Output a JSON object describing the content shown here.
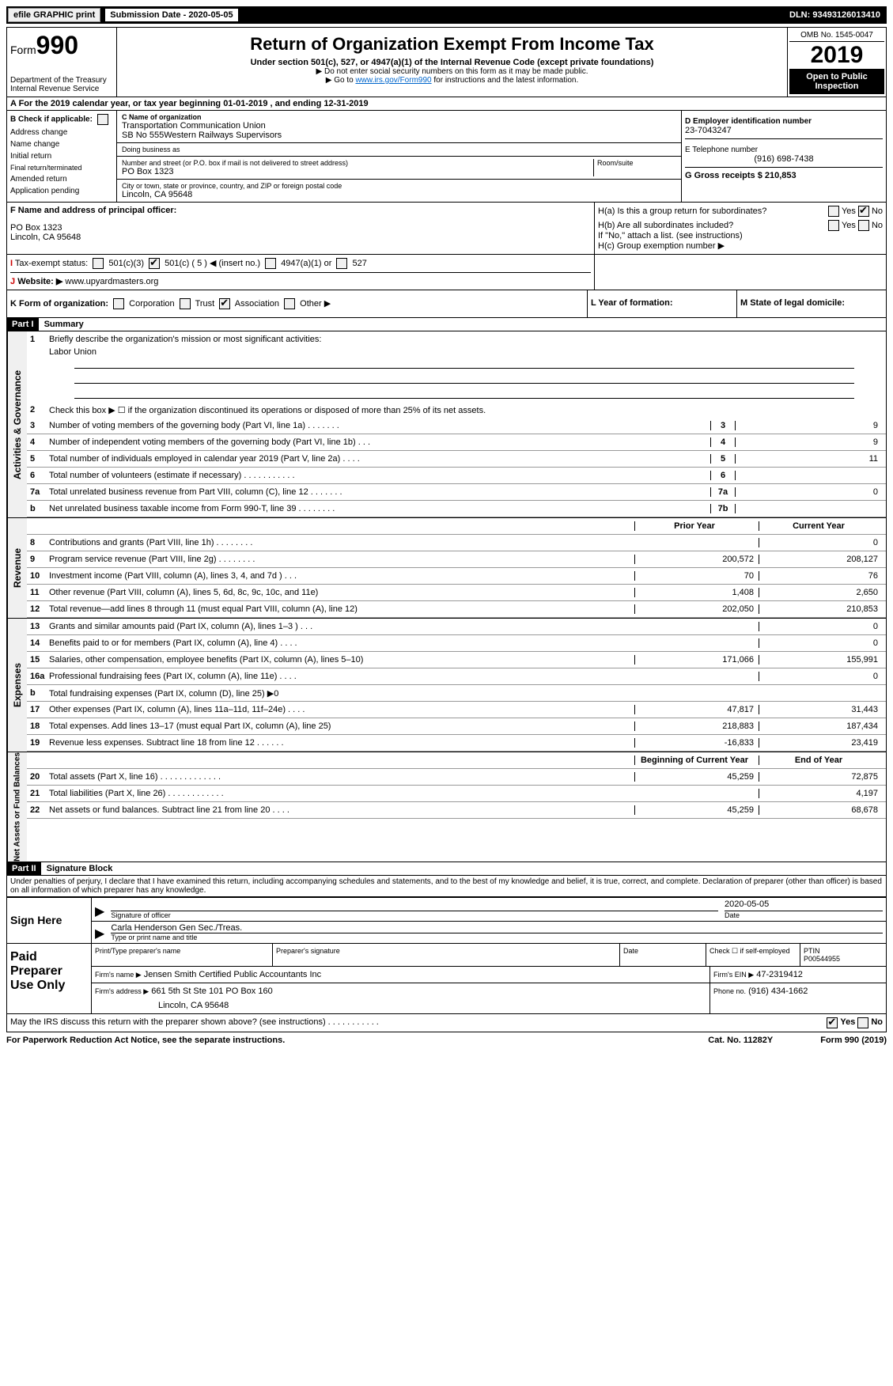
{
  "topbar": {
    "efile": "efile GRAPHIC print",
    "submission": "Submission Date - 2020-05-05",
    "dln": "DLN: 93493126013410"
  },
  "header": {
    "form_label": "Form",
    "form_number": "990",
    "dept": "Department of the Treasury",
    "irs": "Internal Revenue Service",
    "title": "Return of Organization Exempt From Income Tax",
    "subtitle": "Under section 501(c), 527, or 4947(a)(1) of the Internal Revenue Code (except private foundations)",
    "note1": "▶ Do not enter social security numbers on this form as it may be made public.",
    "note2_prefix": "▶ Go to ",
    "note2_link": "www.irs.gov/Form990",
    "note2_suffix": " for instructions and the latest information.",
    "omb": "OMB No. 1545-0047",
    "year": "2019",
    "open": "Open to Public Inspection"
  },
  "row_a": "A  For the 2019 calendar year, or tax year beginning 01-01-2019     , and ending 12-31-2019",
  "section_b": {
    "check_label": "B Check if applicable:",
    "items": [
      "Address change",
      "Name change",
      "Initial return",
      "Final return/terminated",
      "Amended return",
      "Application pending"
    ],
    "c_label": "C Name of organization",
    "org1": "Transportation Communication Union",
    "org2": "SB No 555Western Railways Supervisors",
    "dba_label": "Doing business as",
    "street_label": "Number and street (or P.O. box if mail is not delivered to street address)",
    "room_label": "Room/suite",
    "po": "PO Box 1323",
    "city_label": "City or town, state or province, country, and ZIP or foreign postal code",
    "city": "Lincoln, CA  95648",
    "d_label": "D Employer identification number",
    "ein": "23-7043247",
    "e_label": "E Telephone number",
    "phone": "(916) 698-7438",
    "g_label": "G Gross receipts $ 210,853"
  },
  "section_f": {
    "f_label": "F Name and address of principal officer:",
    "addr1": "PO Box 1323",
    "addr2": "Lincoln, CA  95648",
    "h_a": "H(a)   Is this a group return for subordinates?",
    "h_b": "H(b)   Are all subordinates included?",
    "h_note": "If \"No,\" attach a list. (see instructions)",
    "h_c": "H(c)   Group exemption number ▶",
    "yes": "Yes",
    "no": "No"
  },
  "tax_exempt": {
    "i_label": "I",
    "label": "Tax-exempt status:",
    "opt1": "501(c)(3)",
    "opt2": "501(c) ( 5 ) ◀ (insert no.)",
    "opt3": "4947(a)(1) or",
    "opt4": "527"
  },
  "website": {
    "j_label": "J",
    "label": "Website: ▶",
    "url": "www.upyardmasters.org"
  },
  "korg": {
    "k_label": "K Form of organization:",
    "corp": "Corporation",
    "trust": "Trust",
    "assoc": "Association",
    "other": "Other ▶",
    "l_label": "L Year of formation:",
    "m_label": "M State of legal domicile:"
  },
  "part1": {
    "title": "Part I",
    "summary": "Summary"
  },
  "activities": {
    "side": "Activities & Governance",
    "q1": "Briefly describe the organization's mission or most significant activities:",
    "q1_val": "Labor Union",
    "q2": "Check this box ▶ ☐ if the organization discontinued its operations or disposed of more than 25% of its net assets.",
    "rows": [
      {
        "n": "3",
        "t": "Number of voting members of the governing body (Part VI, line 1a)  .    .    .    .    .    .    .",
        "box": "3",
        "v": "9"
      },
      {
        "n": "4",
        "t": "Number of independent voting members of the governing body (Part VI, line 1b)  .    .    .",
        "box": "4",
        "v": "9"
      },
      {
        "n": "5",
        "t": "Total number of individuals employed in calendar year 2019 (Part V, line 2a)  .    .    .    .",
        "box": "5",
        "v": "11"
      },
      {
        "n": "6",
        "t": "Total number of volunteers (estimate if necessary)  .    .    .    .    .    .    .    .    .    .    .",
        "box": "6",
        "v": ""
      },
      {
        "n": "7a",
        "t": "Total unrelated business revenue from Part VIII, column (C), line 12  .    .    .    .    .    .    .",
        "box": "7a",
        "v": "0"
      },
      {
        "n": "b",
        "t": "Net unrelated business taxable income from Form 990-T, line 39  .    .    .    .    .    .    .    .",
        "box": "7b",
        "v": ""
      }
    ]
  },
  "revenue": {
    "side": "Revenue",
    "prior": "Prior Year",
    "current": "Current Year",
    "rows": [
      {
        "n": "8",
        "t": "Contributions and grants (Part VIII, line 1h)  .    .    .    .    .    .    .    .",
        "p": "",
        "c": "0"
      },
      {
        "n": "9",
        "t": "Program service revenue (Part VIII, line 2g)  .    .    .    .    .    .    .    .",
        "p": "200,572",
        "c": "208,127"
      },
      {
        "n": "10",
        "t": "Investment income (Part VIII, column (A), lines 3, 4, and 7d )  .    .    .",
        "p": "70",
        "c": "76"
      },
      {
        "n": "11",
        "t": "Other revenue (Part VIII, column (A), lines 5, 6d, 8c, 9c, 10c, and 11e)",
        "p": "1,408",
        "c": "2,650"
      },
      {
        "n": "12",
        "t": "Total revenue—add lines 8 through 11 (must equal Part VIII, column (A), line 12)",
        "p": "202,050",
        "c": "210,853"
      }
    ]
  },
  "expenses": {
    "side": "Expenses",
    "rows": [
      {
        "n": "13",
        "t": "Grants and similar amounts paid (Part IX, column (A), lines 1–3 )  .    .    .",
        "p": "",
        "c": "0"
      },
      {
        "n": "14",
        "t": "Benefits paid to or for members (Part IX, column (A), line 4)  .    .    .    .",
        "p": "",
        "c": "0"
      },
      {
        "n": "15",
        "t": "Salaries, other compensation, employee benefits (Part IX, column (A), lines 5–10)",
        "p": "171,066",
        "c": "155,991"
      },
      {
        "n": "16a",
        "t": "Professional fundraising fees (Part IX, column (A), line 11e)  .    .    .    .",
        "p": "",
        "c": "0"
      },
      {
        "n": "b",
        "t": "Total fundraising expenses (Part IX, column (D), line 25) ▶0",
        "p": "",
        "c": ""
      },
      {
        "n": "17",
        "t": "Other expenses (Part IX, column (A), lines 11a–11d, 11f–24e)  .    .    .    .",
        "p": "47,817",
        "c": "31,443"
      },
      {
        "n": "18",
        "t": "Total expenses. Add lines 13–17 (must equal Part IX, column (A), line 25)",
        "p": "218,883",
        "c": "187,434"
      },
      {
        "n": "19",
        "t": "Revenue less expenses. Subtract line 18 from line 12  .    .    .    .    .    .",
        "p": "-16,833",
        "c": "23,419"
      }
    ]
  },
  "netassets": {
    "side": "Net Assets or Fund Balances",
    "begin": "Beginning of Current Year",
    "end": "End of Year",
    "rows": [
      {
        "n": "20",
        "t": "Total assets (Part X, line 16)  .    .    .    .    .    .    .    .    .    .    .    .    .",
        "p": "45,259",
        "c": "72,875"
      },
      {
        "n": "21",
        "t": "Total liabilities (Part X, line 26)  .    .    .    .    .    .    .    .    .    .    .    .",
        "p": "",
        "c": "4,197"
      },
      {
        "n": "22",
        "t": "Net assets or fund balances. Subtract line 21 from line 20  .    .    .    .",
        "p": "45,259",
        "c": "68,678"
      }
    ]
  },
  "part2": {
    "title": "Part II",
    "sig": "Signature Block",
    "perjury": "Under penalties of perjury, I declare that I have examined this return, including accompanying schedules and statements, and to the best of my knowledge and belief, it is true, correct, and complete. Declaration of preparer (other than officer) is based on all information of which preparer has any knowledge."
  },
  "sign": {
    "here": "Sign Here",
    "sig_label": "Signature of officer",
    "date_label": "Date",
    "date": "2020-05-05",
    "name": "Carla Henderson Gen Sec./Treas.",
    "name_label": "Type or print name and title"
  },
  "paid": {
    "title": "Paid Preparer Use Only",
    "col1": "Print/Type preparer's name",
    "col2": "Preparer's signature",
    "col3": "Date",
    "col4_check": "Check ☐ if self-employed",
    "col5_label": "PTIN",
    "ptin": "P00544955",
    "firm_name_label": "Firm's name     ▶",
    "firm_name": "Jensen Smith Certified Public Accountants Inc",
    "firm_ein_label": "Firm's EIN ▶",
    "firm_ein": "47-2319412",
    "firm_addr_label": "Firm's address ▶",
    "firm_addr1": "661 5th St Ste 101 PO Box 160",
    "firm_addr2": "Lincoln, CA  95648",
    "phone_label": "Phone no.",
    "phone": "(916) 434-1662"
  },
  "footer": {
    "discuss": "May the IRS discuss this return with the preparer shown above? (see instructions)  .    .    .    .    .    .    .    .    .    .    .",
    "yes": "Yes",
    "no": "No",
    "paperwork": "For Paperwork Reduction Act Notice, see the separate instructions.",
    "cat": "Cat. No. 11282Y",
    "form": "Form 990 (2019)"
  }
}
